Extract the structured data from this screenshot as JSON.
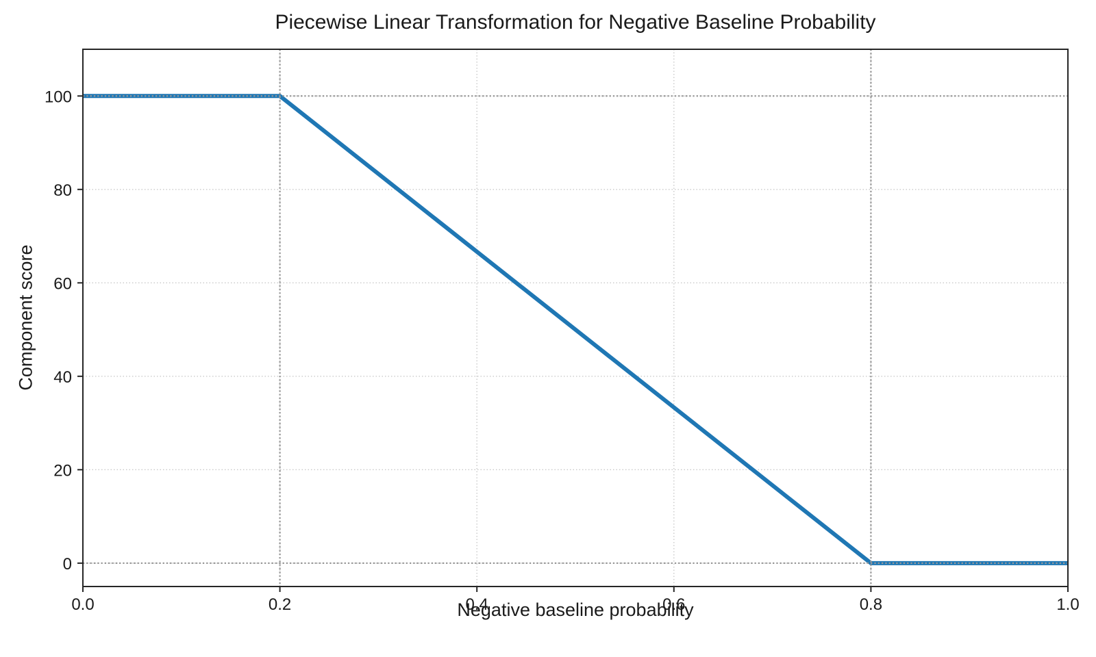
{
  "page": {
    "background": "#ffffff",
    "text_color": "#1a1a1a",
    "spine_color": "#262626"
  },
  "chart_data": {
    "type": "line",
    "title": "Piecewise Linear Transformation for Negative Baseline Probability",
    "xlabel": "Negative baseline probability",
    "ylabel": "Component score",
    "xlim": [
      0,
      1
    ],
    "ylim": [
      -5,
      110
    ],
    "xticks": [
      0,
      0.2,
      0.4,
      0.6,
      0.8,
      1
    ],
    "xtick_labels": [
      "0.0",
      "0.2",
      "0.4",
      "0.6",
      "0.8",
      "1.0"
    ],
    "yticks": [
      0,
      20,
      40,
      60,
      80,
      100
    ],
    "ytick_labels": [
      "0",
      "20",
      "40",
      "60",
      "80",
      "100"
    ],
    "series": [
      {
        "name": "component-score-transform",
        "color": "#1f77b4",
        "width": 6,
        "points": [
          [
            0,
            100
          ],
          [
            0.2,
            100
          ],
          [
            0.8,
            0
          ],
          [
            1.0,
            0
          ]
        ]
      }
    ],
    "grid": {
      "show": true,
      "style": "dotted",
      "color": "#c9c9c9"
    },
    "reference_lines": {
      "style": "dotted",
      "color": "#999999",
      "vertical_x": [
        0.2,
        0.8
      ],
      "horizontal_y": [
        0,
        100
      ]
    },
    "legend": {
      "show": false
    }
  }
}
